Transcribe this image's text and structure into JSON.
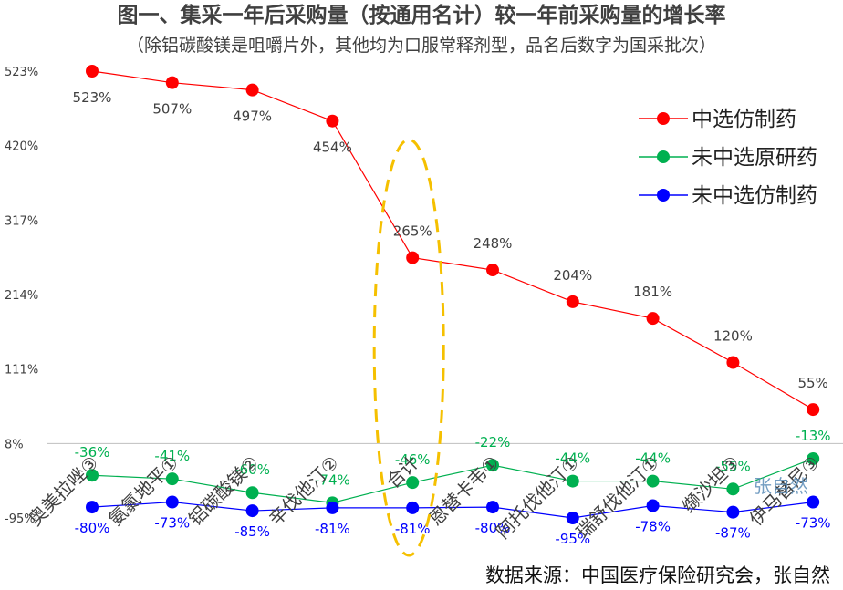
{
  "chart_data": {
    "type": "line",
    "title": "图一、集采一年后采购量（按通用名计）较一年前采购量的增长率",
    "subtitle": "（除铝碳酸镁是咀嚼片外，其他均为口服常释剂型，品名后数字为国采批次）",
    "categories": [
      "奥美拉唑③",
      "氨氯地平①",
      "铝碳酸镁②",
      "辛伐他汀②",
      "合计",
      "恩替卡韦①",
      "阿托伐他汀①",
      "瑞舒伐他汀①",
      "缬沙坦③",
      "伊马替尼③"
    ],
    "yticks": [
      "523%",
      "420%",
      "317%",
      "214%",
      "111%",
      "8%",
      "-95%"
    ],
    "ylim": [
      -95,
      523
    ],
    "series": [
      {
        "name": "中选仿制药",
        "color": "#ff0000",
        "values": [
          523,
          507,
          497,
          454,
          265,
          248,
          204,
          181,
          120,
          55
        ],
        "labels": [
          "523%",
          "507%",
          "497%",
          "454%",
          "265%",
          "248%",
          "204%",
          "181%",
          "120%",
          "55%"
        ]
      },
      {
        "name": "未中选原研药",
        "color": "#00b050",
        "values": [
          -36,
          -41,
          -60,
          -74,
          -46,
          -22,
          -44,
          -44,
          -55,
          -13
        ],
        "labels": [
          "-36%",
          "-41%",
          "-60%",
          "-74%",
          "-46%",
          "-22%",
          "-44%",
          "-44%",
          "-55%",
          "-13%"
        ]
      },
      {
        "name": "未中选仿制药",
        "color": "#0000ff",
        "values": [
          -80,
          -73,
          -85,
          -81,
          -81,
          -80,
          -95,
          -78,
          -87,
          -73
        ],
        "labels": [
          "-80%",
          "-73%",
          "-85%",
          "-81%",
          "-81%",
          "-80%",
          "-95%",
          "-78%",
          "-87%",
          "-73%"
        ]
      }
    ],
    "legend_position": "top-right",
    "highlight_category": "合计",
    "highlight_color": "#f5c000"
  },
  "source_text": "数据来源：中国医疗保险研究会，张自然",
  "watermark_text": "张自然"
}
